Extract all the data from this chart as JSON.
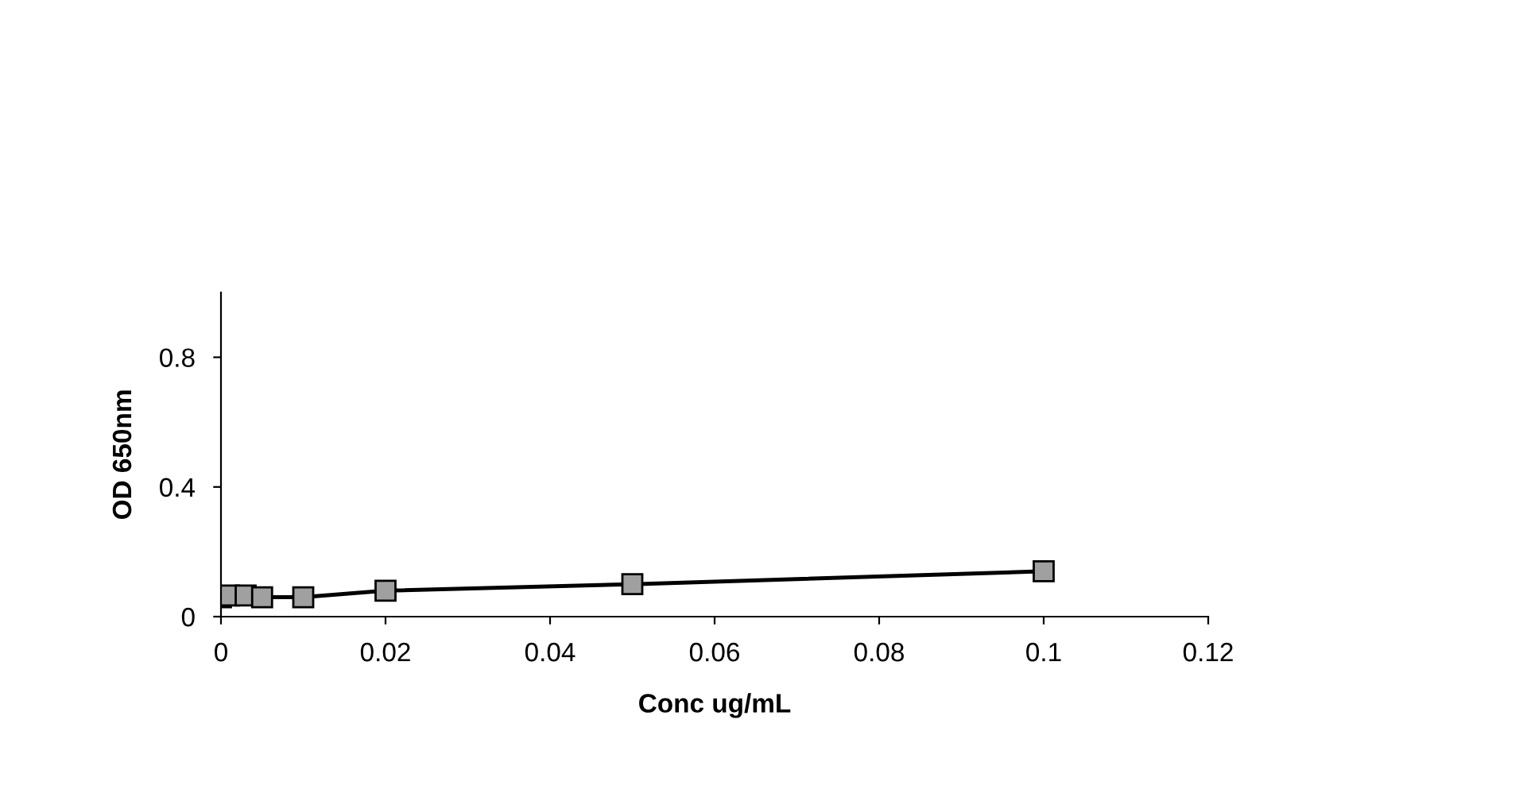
{
  "chart_data": {
    "type": "line",
    "xlabel": "Conc ug/mL",
    "ylabel": "OD 650nm",
    "x": [
      0,
      0.001,
      0.003,
      0.005,
      0.01,
      0.02,
      0.05,
      0.1
    ],
    "series": [
      {
        "color": "#000000",
        "values": [
          0.06,
          0.065,
          0.065,
          0.06,
          0.06,
          0.08,
          0.1,
          0.14
        ]
      }
    ],
    "marker": "square",
    "line_style": "solid",
    "grid": false,
    "legend": false,
    "xlim": [
      0,
      0.12
    ],
    "xticks": [
      0,
      0.02,
      0.04,
      0.06,
      0.08,
      0.1,
      0.12
    ],
    "ylim": [
      0,
      1
    ],
    "yticks": [
      0,
      0.4,
      0.8
    ]
  }
}
